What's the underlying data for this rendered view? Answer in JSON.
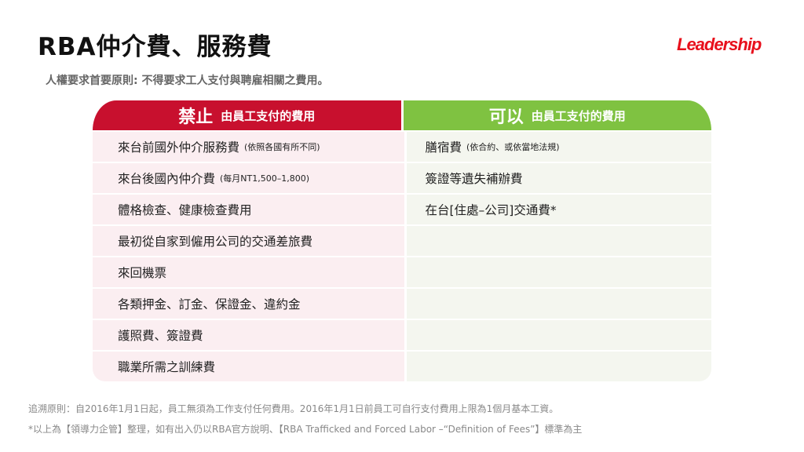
{
  "title": "RBA仲介費、服務費",
  "logo": "Leadership",
  "subtitle": "人權要求首要原則: 不得要求工人支付與聘雇相關之費用。",
  "colors": {
    "prohibited": "#c8102e",
    "allowed": "#7fc241",
    "logo": "#e8101c"
  },
  "left_header": {
    "big": "禁止",
    "small": "由員工支付的費用"
  },
  "right_header": {
    "big": "可以",
    "small": "由員工支付的費用"
  },
  "left_items": [
    {
      "text": "來台前國外仲介服務費",
      "note": "(依照各國有所不同)"
    },
    {
      "text": "來台後國內仲介費",
      "note": "(每月NT1,500–1,800)"
    },
    {
      "text": "體格檢查、健康檢查費用",
      "note": ""
    },
    {
      "text": "最初從自家到僱用公司的交通差旅費",
      "note": ""
    },
    {
      "text": "來回機票",
      "note": ""
    },
    {
      "text": "各類押金、訂金、保證金、違約金",
      "note": ""
    },
    {
      "text": "護照費、簽證費",
      "note": ""
    },
    {
      "text": "職業所需之訓練費",
      "note": ""
    }
  ],
  "right_items": [
    {
      "text": "膳宿費",
      "note": "(依合約、或依當地法規)"
    },
    {
      "text": "簽證等遺失補辦費",
      "note": ""
    },
    {
      "text": "在台[住處–公司]交通費*",
      "note": ""
    },
    {
      "text": "",
      "note": ""
    },
    {
      "text": "",
      "note": ""
    },
    {
      "text": "",
      "note": ""
    },
    {
      "text": "",
      "note": ""
    },
    {
      "text": "",
      "note": ""
    }
  ],
  "footer": {
    "line1": "追溯原則：自2016年1月1日起，員工無須為工作支付任何費用。2016年1月1日前員工可自行支付費用上限為1個月基本工資。",
    "line2": "*以上為【領導力企管】整理，如有出入仍以RBA官方說明、【RBA Trafficked and Forced Labor –“Definition of Fees”】標準為主"
  }
}
